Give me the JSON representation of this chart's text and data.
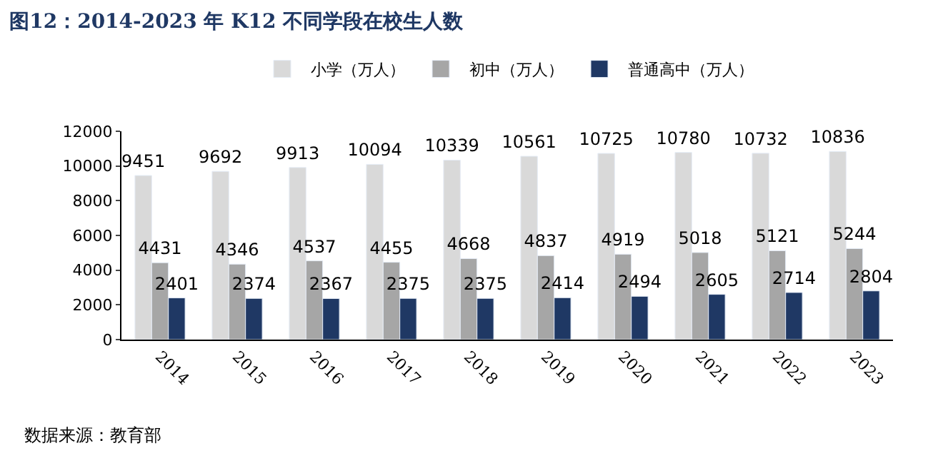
{
  "chart_data": {
    "type": "bar",
    "title": "图12：2014-2023 年 K12 不同学段在校生人数",
    "categories": [
      "2014",
      "2015",
      "2016",
      "2017",
      "2018",
      "2019",
      "2020",
      "2021",
      "2022",
      "2023"
    ],
    "series": [
      {
        "name": "小学（万人）",
        "color": "#d9d9d9",
        "values": [
          9451,
          9692,
          9913,
          10094,
          10339,
          10561,
          10725,
          10780,
          10732,
          10836
        ]
      },
      {
        "name": "初中（万人）",
        "color": "#a6a6a6",
        "values": [
          4431,
          4346,
          4537,
          4455,
          4668,
          4837,
          4919,
          5018,
          5121,
          5244
        ]
      },
      {
        "name": "普通高中（万人）",
        "color": "#1f3864",
        "values": [
          2401,
          2374,
          2367,
          2375,
          2375,
          2414,
          2494,
          2605,
          2714,
          2804
        ]
      }
    ],
    "ylim": [
      0,
      12000
    ],
    "yticks": [
      0,
      2000,
      4000,
      6000,
      8000,
      10000,
      12000
    ],
    "legend": "top",
    "data_labels": true,
    "annotations": [
      "数据来源：教育部"
    ]
  }
}
